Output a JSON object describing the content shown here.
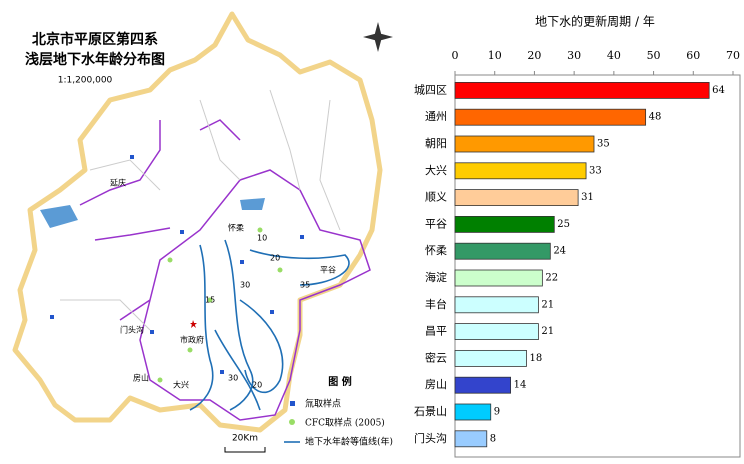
{
  "map": {
    "title_line1": "北京市平原区第四系",
    "title_line2": "浅层地下水年龄分布图",
    "scale": "1:1,200,000",
    "legend_title": "图  例",
    "legend_items": [
      "氚取样点",
      "CFC取样点 (2005)",
      "地下水年龄等值线(年)"
    ],
    "scale_bar": "20Km",
    "places": [
      "延庆",
      "怀柔",
      "平谷",
      "门头沟",
      "房山",
      "大兴",
      "市政府"
    ],
    "contour_labels": [
      "10",
      "15",
      "20",
      "30",
      "35",
      "20",
      "30"
    ]
  },
  "chart_data": {
    "type": "hbar",
    "title": "地下水的更新周期 / 年",
    "categories": [
      "城四区",
      "通州",
      "朝阳",
      "大兴",
      "顺义",
      "平谷",
      "怀柔",
      "海淀",
      "丰台",
      "昌平",
      "密云",
      "房山",
      "石景山",
      "门头沟"
    ],
    "values": [
      64,
      48,
      35,
      33,
      31,
      25,
      24,
      22,
      21,
      21,
      18,
      14,
      9,
      8
    ],
    "colors": [
      "#ff0000",
      "#ff6600",
      "#ff9900",
      "#ffcc00",
      "#ffcc99",
      "#008000",
      "#339966",
      "#ccffcc",
      "#ccffff",
      "#ccffff",
      "#ccffff",
      "#3344cc",
      "#00ccff",
      "#99ccff"
    ],
    "xlim": [
      0,
      70
    ],
    "xticks": [
      0,
      10,
      20,
      30,
      40,
      50,
      60,
      70
    ]
  }
}
